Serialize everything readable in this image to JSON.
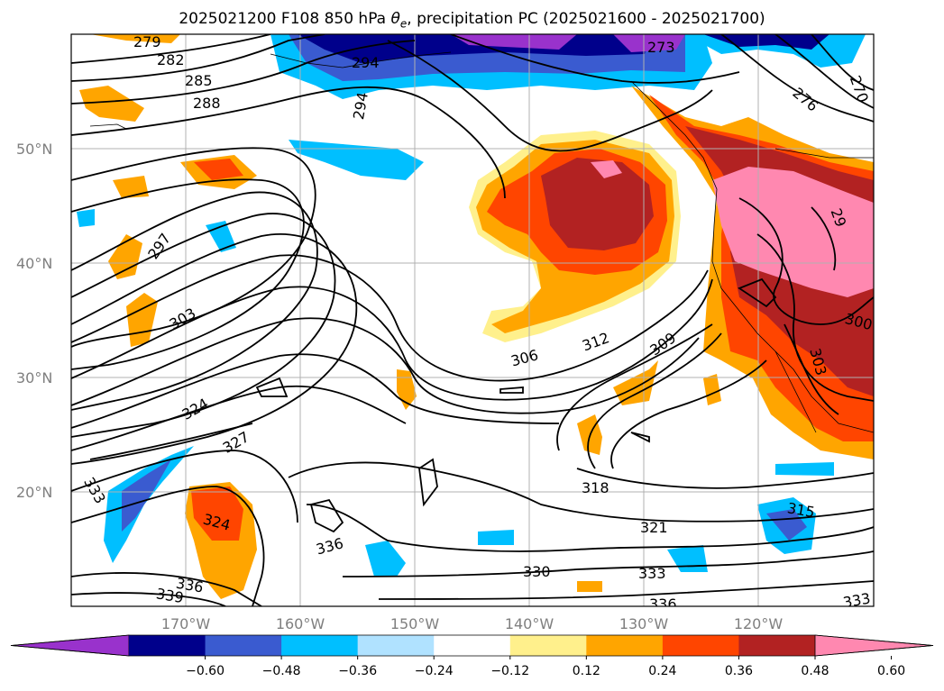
{
  "title": {
    "run": "2025021200",
    "forecast": "F108",
    "level": "850 hPa",
    "var": "θ",
    "var_sub": "e",
    "rest": ", precipitation PC (2025021600 - 2025021700)"
  },
  "map": {
    "lat_labels": [
      "50°N",
      "40°N",
      "30°N",
      "20°N"
    ],
    "lon_labels": [
      "170°W",
      "160°W",
      "150°W",
      "140°W",
      "130°W",
      "120°W"
    ]
  },
  "contour_labels": [
    "279",
    "282",
    "285",
    "288",
    "294",
    "297",
    "303",
    "306",
    "309",
    "312",
    "318",
    "321",
    "324",
    "327",
    "324",
    "330",
    "333",
    "333",
    "336",
    "336",
    "339",
    "315",
    "300",
    "303",
    "276",
    "273",
    "270",
    "29",
    "336",
    "333"
  ],
  "colorbar": {
    "colors": [
      "#9932cc",
      "#00008b",
      "#3a5bd0",
      "#00bfff",
      "#b0e2ff",
      "#ffffff",
      "#fff08c",
      "#ffa500",
      "#ff4500",
      "#b22222",
      "#ff88b0"
    ],
    "ticks": [
      "−0.60",
      "−0.48",
      "−0.36",
      "−0.24",
      "−0.12",
      "0.12",
      "0.24",
      "0.36",
      "0.48",
      "0.60"
    ]
  }
}
